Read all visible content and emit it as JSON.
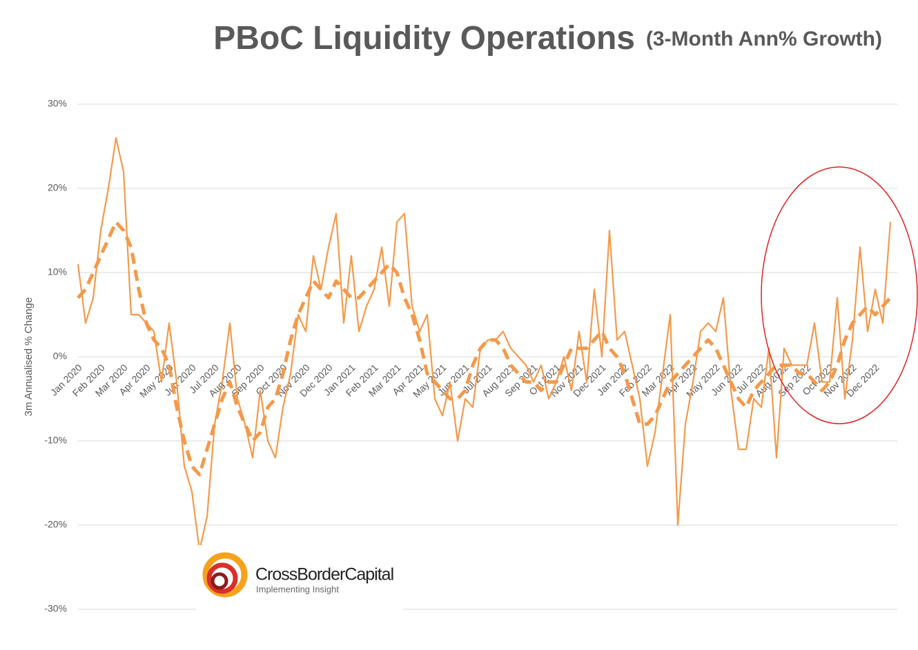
{
  "chart_data": {
    "type": "line",
    "title": "PBoC Liquidity Operations",
    "subtitle": "(3-Month Ann% Growth)",
    "y_label": "3m Annualised % Change",
    "logo": {
      "name": "CrossBorderCapital",
      "tagline": "Implementing Insight"
    },
    "categories": [
      "Jan 2020",
      null,
      null,
      "Feb 2020",
      null,
      null,
      "Mar 2020",
      null,
      null,
      "Apr 2020",
      null,
      null,
      "May 2020",
      null,
      null,
      "Jun 2020",
      null,
      null,
      "Jul 2020",
      null,
      null,
      "Aug 2020",
      null,
      null,
      "Sep 2020",
      null,
      null,
      "Oct 2020",
      null,
      null,
      "Nov 2020",
      null,
      null,
      "Dec 2020",
      null,
      null,
      "Jan 2021",
      null,
      null,
      "Feb 2021",
      null,
      null,
      "Mar 2021",
      null,
      null,
      "Apr 2021",
      null,
      null,
      "May 2021",
      null,
      null,
      "Jun 2021",
      null,
      null,
      "Jul 2021",
      null,
      null,
      "Aug 2021",
      null,
      null,
      "Sep 2021",
      null,
      null,
      "Oct 2021",
      null,
      null,
      "Nov 2021",
      null,
      null,
      "Dec 2021",
      null,
      null,
      "Jan 2022",
      null,
      null,
      "Feb 2022",
      null,
      null,
      "Mar 2022",
      null,
      null,
      "Apr 2022",
      null,
      null,
      "May 2022",
      null,
      null,
      "Jun 2022",
      null,
      null,
      "Jul 2022",
      null,
      null,
      "Aug 2022",
      null,
      null,
      "Sep 2022",
      null,
      null,
      "Oct 2022",
      null,
      null,
      "Nov 2022",
      null,
      null,
      "Dec 2022",
      null,
      null
    ],
    "series": [
      {
        "color": "#f4994a",
        "style": "solid",
        "values": [
          11,
          4,
          7,
          15,
          20,
          26,
          22,
          5,
          5,
          4,
          3,
          -3,
          4,
          -3,
          -13,
          -16,
          -23,
          -19,
          -8,
          -3,
          4,
          -5,
          -8,
          -12,
          -4,
          -10,
          -12,
          -6,
          -2,
          5,
          3,
          12,
          8,
          13,
          17,
          4,
          12,
          3,
          6,
          8,
          13,
          6,
          16,
          17,
          6,
          3,
          5,
          -5,
          -7,
          -3,
          -10,
          -5,
          -6,
          1,
          2,
          2,
          3,
          1,
          0,
          -1,
          -3,
          -1,
          -5,
          -3,
          0,
          -4,
          3,
          -3,
          8,
          0,
          15,
          2,
          3,
          -1,
          -5,
          -13,
          -9,
          -2,
          5,
          -20,
          -8,
          -3,
          3,
          4,
          3,
          7,
          -4,
          -11,
          -11,
          -5,
          -6,
          1,
          -12,
          1,
          -1,
          -1,
          -1,
          4,
          -3,
          -3,
          7,
          -5,
          2,
          13,
          3,
          8,
          4,
          16
        ]
      },
      {
        "color": "#f4994a",
        "style": "dashed",
        "values": [
          7,
          8,
          10,
          12,
          14,
          16,
          15,
          13,
          8,
          4,
          2,
          1,
          -1,
          -6,
          -10,
          -13,
          -14,
          -11,
          -8,
          -5,
          -3,
          -6,
          -8,
          -10,
          -9,
          -6,
          -5,
          -2,
          2,
          5,
          7,
          9,
          8,
          7,
          9,
          8,
          7,
          7,
          8,
          9,
          10,
          11,
          10,
          7,
          5,
          2,
          -2,
          -3,
          -4,
          -5,
          -5,
          -4,
          -1,
          1,
          2,
          2,
          1,
          -1,
          -2,
          -3,
          -3,
          -4,
          -3,
          -3,
          -1,
          1,
          1,
          1,
          2,
          3,
          1,
          0,
          -2,
          -5,
          -8,
          -8,
          -7,
          -5,
          -3,
          -2,
          -1,
          0,
          1,
          2,
          1,
          -1,
          -3,
          -5,
          -6,
          -4,
          -3,
          -2,
          -1,
          -1,
          -1,
          -2,
          -2,
          -3,
          -4,
          -3,
          -1,
          2,
          4,
          5,
          6,
          5,
          6,
          7
        ]
      }
    ],
    "ylim": [
      -30,
      30
    ],
    "yticks": [
      {
        "value": -30,
        "label": "-30%"
      },
      {
        "value": -20,
        "label": "-20%"
      },
      {
        "value": -10,
        "label": "-10%"
      },
      {
        "value": 0,
        "label": "0%"
      },
      {
        "value": 10,
        "label": "10%"
      },
      {
        "value": 20,
        "label": "20%"
      },
      {
        "value": 30,
        "label": "30%"
      }
    ],
    "grid": true
  }
}
